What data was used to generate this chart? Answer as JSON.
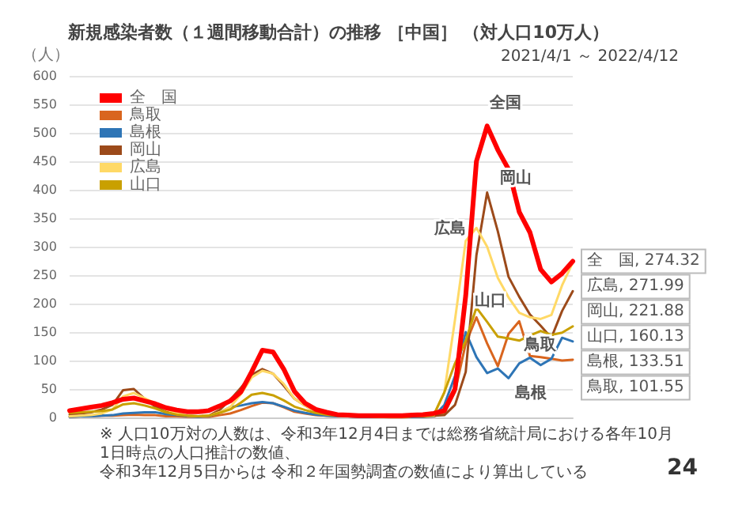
{
  "chart_data": {
    "type": "line",
    "title": "新規感染者数（１週間移動合計）の推移 ［中国］ （対人口10万人）",
    "subtitle": "2021/4/1 ～ 2022/4/12",
    "ylabel": "（人）",
    "categories": [
      null,
      null,
      null,
      null,
      null,
      null,
      null,
      null,
      null,
      null,
      null,
      null,
      null,
      null,
      null,
      null,
      null,
      null,
      null,
      null,
      null,
      null,
      null,
      null,
      null,
      null,
      null,
      null,
      null,
      null,
      null,
      null,
      null,
      null,
      null,
      null,
      null,
      null,
      null,
      null,
      null,
      null,
      null,
      null,
      null,
      null,
      null,
      null
    ],
    "series": [
      {
        "name": "全　国",
        "color": "#ff0000",
        "values": [
          12,
          15,
          18,
          21,
          26,
          32,
          34,
          29,
          24,
          17,
          13,
          10,
          10,
          12,
          20,
          29,
          45,
          80,
          118,
          115,
          85,
          46,
          25,
          14,
          9,
          5,
          4,
          3,
          3,
          3,
          3,
          3,
          4,
          5,
          7,
          12,
          50,
          214,
          450,
          512,
          470,
          436,
          361,
          325,
          260,
          238,
          253,
          274.32
        ],
        "value_labels": [
          null,
          null,
          null,
          null,
          null,
          null,
          null,
          null,
          null,
          null,
          null,
          null,
          null,
          null,
          null,
          null,
          null,
          null,
          null,
          null,
          null,
          null,
          null,
          null,
          null,
          null,
          null,
          null,
          null,
          null,
          null,
          null,
          null,
          null,
          null,
          null,
          null,
          null,
          null,
          null,
          null,
          null,
          null,
          null,
          null,
          null,
          null,
          "全　国, 274.32"
        ]
      },
      {
        "name": "鳥取",
        "color": "#d9651e",
        "values": [
          1,
          2,
          2,
          3,
          3,
          4,
          5,
          4,
          4,
          2,
          2,
          1,
          1,
          1,
          4,
          7,
          13,
          20,
          26,
          25,
          18,
          10,
          7,
          4,
          3,
          2,
          2,
          1,
          1,
          1,
          0,
          0,
          1,
          1,
          2,
          8,
          45,
          130,
          176,
          130,
          90,
          147,
          169,
          108,
          106,
          103,
          100,
          101.55
        ],
        "value_labels": [
          null,
          null,
          null,
          null,
          null,
          null,
          null,
          null,
          null,
          null,
          null,
          null,
          null,
          null,
          null,
          null,
          null,
          null,
          null,
          null,
          null,
          null,
          null,
          null,
          null,
          null,
          null,
          null,
          null,
          null,
          null,
          null,
          null,
          null,
          null,
          null,
          null,
          null,
          null,
          null,
          null,
          null,
          null,
          null,
          null,
          null,
          null,
          "鳥取, 101.55"
        ]
      },
      {
        "name": "島根",
        "color": "#2e75b6",
        "values": [
          1,
          2,
          2,
          3,
          4,
          7,
          8,
          9,
          9,
          6,
          4,
          2,
          1,
          2,
          9,
          18,
          21,
          25,
          27,
          25,
          19,
          12,
          8,
          5,
          3,
          2,
          2,
          1,
          1,
          1,
          1,
          1,
          1,
          1,
          2,
          22,
          73,
          150,
          106,
          78,
          86,
          69,
          95,
          105,
          92,
          103,
          140,
          133.51
        ],
        "value_labels": [
          null,
          null,
          null,
          null,
          null,
          null,
          null,
          null,
          null,
          null,
          null,
          null,
          null,
          null,
          null,
          null,
          null,
          null,
          null,
          null,
          null,
          null,
          null,
          null,
          null,
          null,
          null,
          null,
          null,
          null,
          null,
          null,
          null,
          null,
          null,
          null,
          null,
          null,
          null,
          null,
          null,
          null,
          null,
          null,
          null,
          null,
          null,
          "島根, 133.51"
        ]
      },
      {
        "name": "岡山",
        "color": "#9c4a1a",
        "values": [
          5,
          7,
          9,
          14,
          22,
          48,
          50,
          33,
          19,
          10,
          5,
          3,
          2,
          3,
          13,
          31,
          52,
          75,
          85,
          77,
          56,
          33,
          21,
          10,
          6,
          4,
          3,
          2,
          2,
          1,
          1,
          1,
          2,
          2,
          3,
          4,
          22,
          80,
          285,
          395,
          327,
          247,
          212,
          181,
          161,
          140,
          187,
          221.88
        ],
        "value_labels": [
          null,
          null,
          null,
          null,
          null,
          null,
          null,
          null,
          null,
          null,
          null,
          null,
          null,
          null,
          null,
          null,
          null,
          null,
          null,
          null,
          null,
          null,
          null,
          null,
          null,
          null,
          null,
          null,
          null,
          null,
          null,
          null,
          null,
          null,
          null,
          null,
          null,
          null,
          null,
          null,
          null,
          null,
          null,
          null,
          null,
          null,
          null,
          "岡山, 221.88"
        ]
      },
      {
        "name": "広島",
        "color": "#ffd966",
        "values": [
          2,
          3,
          4,
          7,
          14,
          37,
          43,
          34,
          25,
          14,
          8,
          3,
          2,
          3,
          9,
          18,
          41,
          70,
          82,
          77,
          59,
          33,
          21,
          10,
          6,
          4,
          3,
          2,
          2,
          1,
          1,
          1,
          2,
          2,
          3,
          44,
          172,
          310,
          333,
          300,
          245,
          211,
          184,
          176,
          173,
          180,
          232,
          271.99
        ],
        "value_labels": [
          null,
          null,
          null,
          null,
          null,
          null,
          null,
          null,
          null,
          null,
          null,
          null,
          null,
          null,
          null,
          null,
          null,
          null,
          null,
          null,
          null,
          null,
          null,
          null,
          null,
          null,
          null,
          null,
          null,
          null,
          null,
          null,
          null,
          null,
          null,
          null,
          null,
          null,
          null,
          null,
          null,
          null,
          null,
          null,
          null,
          null,
          null,
          "広島, 271.99"
        ]
      },
      {
        "name": "山口",
        "color": "#c9a000",
        "values": [
          8,
          9,
          10,
          11,
          14,
          23,
          25,
          21,
          16,
          9,
          5,
          3,
          2,
          3,
          8,
          14,
          26,
          40,
          43,
          39,
          30,
          19,
          13,
          8,
          5,
          3,
          2,
          2,
          2,
          1,
          1,
          1,
          2,
          2,
          4,
          44,
          95,
          135,
          193,
          168,
          142,
          139,
          135,
          144,
          152,
          145,
          149,
          160.13
        ],
        "value_labels": [
          null,
          null,
          null,
          null,
          null,
          null,
          null,
          null,
          null,
          null,
          null,
          null,
          null,
          null,
          null,
          null,
          null,
          null,
          null,
          null,
          null,
          null,
          null,
          null,
          null,
          null,
          null,
          null,
          null,
          null,
          null,
          null,
          null,
          null,
          null,
          null,
          null,
          null,
          null,
          null,
          null,
          null,
          null,
          null,
          null,
          null,
          null,
          "山口, 160.13"
        ]
      }
    ],
    "ylim": [
      0,
      600
    ],
    "yticks": [
      0,
      50,
      100,
      150,
      200,
      250,
      300,
      350,
      400,
      450,
      500,
      550,
      600
    ],
    "grid": "y",
    "legend": "top left",
    "marker": "none",
    "tick_labels": "y",
    "annotations": [
      "全国",
      "岡山",
      "広島",
      "山口",
      "鳥取",
      "島根",
      "※ 人口10万対の人数は、令和3年12月4日までは総務省統計局における各年10月1日時点の人口推計の数値、",
      "令和3年12月5日からは 令和２年国勢調査の数値により算出している",
      "24"
    ]
  }
}
